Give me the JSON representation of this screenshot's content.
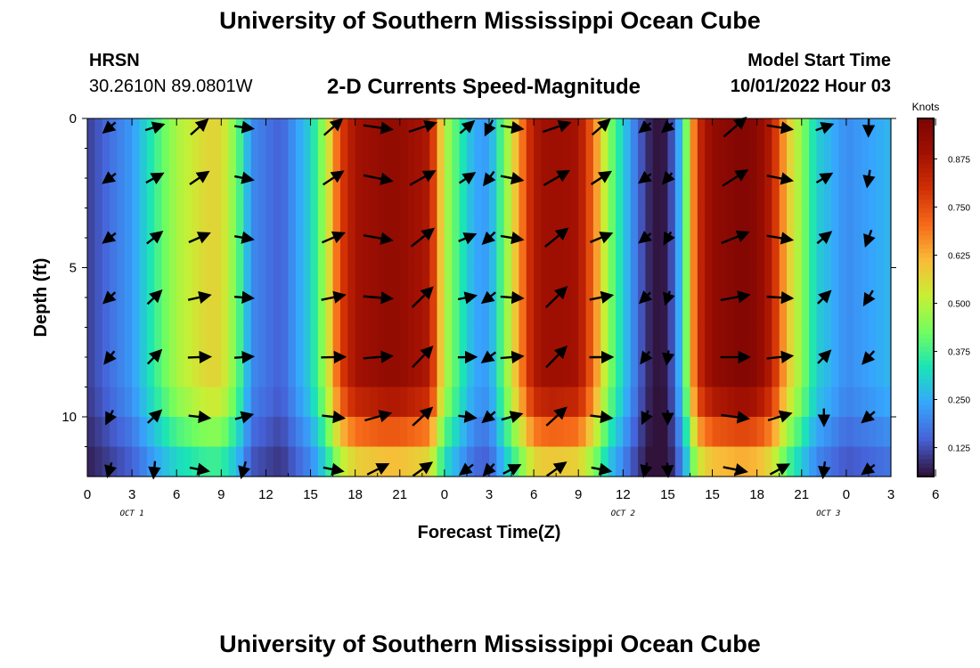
{
  "header": {
    "title": "University of Southern Mississippi Ocean Cube",
    "station": "HRSN",
    "coords": "30.2610N  89.0801W",
    "subtitle": "2-D Currents Speed-Magnitude",
    "model_start_label": "Model Start Time",
    "model_start_value": "10/01/2022 Hour 03"
  },
  "footer": {
    "title": "University of Southern Mississippi Ocean Cube"
  },
  "chart_data": {
    "type": "heatmap",
    "title": "2-D Currents Speed-Magnitude",
    "xlabel": "Forecast Time(Z)",
    "ylabel": "Depth (ft)",
    "x_tick_labels": [
      "0",
      "3",
      "6",
      "9",
      "12",
      "15",
      "18",
      "21",
      "0",
      "3",
      "6",
      "9",
      "12",
      "15",
      "15",
      "18",
      "21",
      "0",
      "3",
      "6"
    ],
    "date_labels": [
      {
        "text": "OCT 1",
        "after_tick": 11
      },
      {
        "text": "OCT 2",
        "after_tick": 11
      },
      {
        "text": "OCT 3",
        "after_tick": 7
      }
    ],
    "y_ticks": [
      0,
      5,
      10
    ],
    "ylim": [
      0,
      12
    ],
    "hours": 54,
    "colorbar": {
      "label": "Knots",
      "range": [
        0.05,
        0.98
      ],
      "ticks": [
        "0.125",
        "0.250",
        "0.375",
        "0.500",
        "0.625",
        "0.750",
        "0.875"
      ],
      "tick_values": [
        0.125,
        0.25,
        0.375,
        0.5,
        0.625,
        0.75,
        0.875
      ]
    },
    "speed_profile_hours": [
      0,
      3,
      5,
      6,
      8,
      9,
      10,
      10.5,
      11,
      13,
      15,
      16,
      17,
      18,
      20,
      21,
      23,
      24,
      25,
      26,
      27,
      28,
      30,
      31,
      33,
      34,
      35,
      36,
      37,
      38,
      39,
      40,
      41,
      42,
      44,
      45,
      46,
      47,
      48,
      49,
      51,
      54
    ],
    "speed_profile_knots": [
      0.1,
      0.22,
      0.4,
      0.48,
      0.56,
      0.56,
      0.42,
      0.33,
      0.2,
      0.14,
      0.3,
      0.48,
      0.76,
      0.88,
      0.92,
      0.92,
      0.86,
      0.5,
      0.36,
      0.24,
      0.22,
      0.42,
      0.86,
      0.9,
      0.88,
      0.7,
      0.45,
      0.3,
      0.15,
      0.05,
      0.06,
      0.3,
      0.8,
      0.92,
      0.96,
      0.94,
      0.84,
      0.6,
      0.45,
      0.3,
      0.2,
      0.26
    ],
    "arrow_rows_depth_ft": [
      0,
      2,
      4,
      6,
      8,
      10,
      12
    ],
    "arrow_hours": [
      1.5,
      4.5,
      7.5,
      10.5,
      16.5,
      19.5,
      22.5,
      25.5,
      27,
      28.5,
      31.5,
      34.5,
      37.5,
      39,
      43.5,
      46.5,
      49.5,
      52.5
    ]
  }
}
